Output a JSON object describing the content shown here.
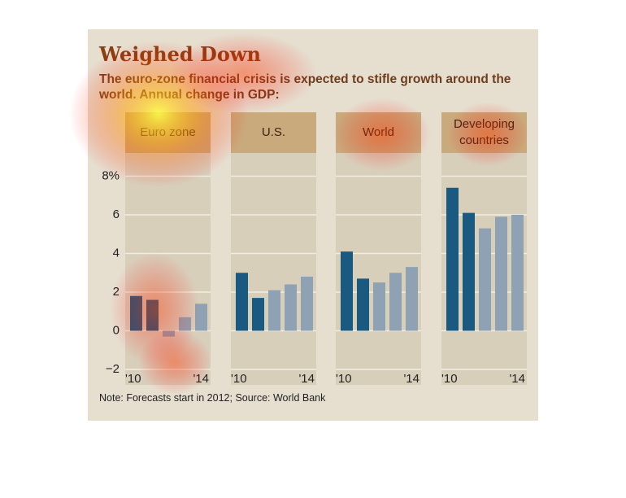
{
  "header": {
    "title": "Weighed Down",
    "subtitle": "The euro-zone financial crisis is expected to stifle growth around the world. Annual change in GDP:"
  },
  "note": "Note: Forecasts start in 2012; Source: World Bank",
  "chart_data": [
    {
      "type": "bar",
      "title": "Euro zone",
      "categories": [
        "'10",
        null,
        null,
        null,
        "'14"
      ],
      "values": [
        1.8,
        1.6,
        -0.3,
        0.7,
        1.4
      ],
      "colors": [
        "#1a5a80",
        "#1a5a80",
        "#8fa2b4",
        "#8fa2b4",
        "#8fa2b4"
      ],
      "ylim": [
        -2.8,
        9.2
      ],
      "yticks": [
        {
          "value": 8,
          "label": "8%"
        },
        6,
        4,
        2,
        0,
        {
          "value": -2,
          "label": "−2"
        }
      ],
      "grid": true
    },
    {
      "type": "bar",
      "title": "U.S.",
      "categories": [
        "'10",
        null,
        null,
        null,
        "'14"
      ],
      "values": [
        3.0,
        1.7,
        2.1,
        2.4,
        2.8
      ],
      "colors": [
        "#1a5a80",
        "#1a5a80",
        "#8fa2b4",
        "#8fa2b4",
        "#8fa2b4"
      ]
    },
    {
      "type": "bar",
      "title": "World",
      "categories": [
        "'10",
        null,
        null,
        null,
        "'14"
      ],
      "values": [
        4.1,
        2.7,
        2.5,
        3.0,
        3.3
      ],
      "colors": [
        "#1a5a80",
        "#1a5a80",
        "#8fa2b4",
        "#8fa2b4",
        "#8fa2b4"
      ]
    },
    {
      "type": "bar",
      "title": "Developing countries",
      "categories": [
        "'10",
        null,
        null,
        null,
        "'14"
      ],
      "values": [
        7.4,
        6.1,
        5.3,
        5.9,
        6.0
      ],
      "colors": [
        "#1a5a80",
        "#1a5a80",
        "#8fa2b4",
        "#8fa2b4",
        "#8fa2b4"
      ]
    }
  ]
}
